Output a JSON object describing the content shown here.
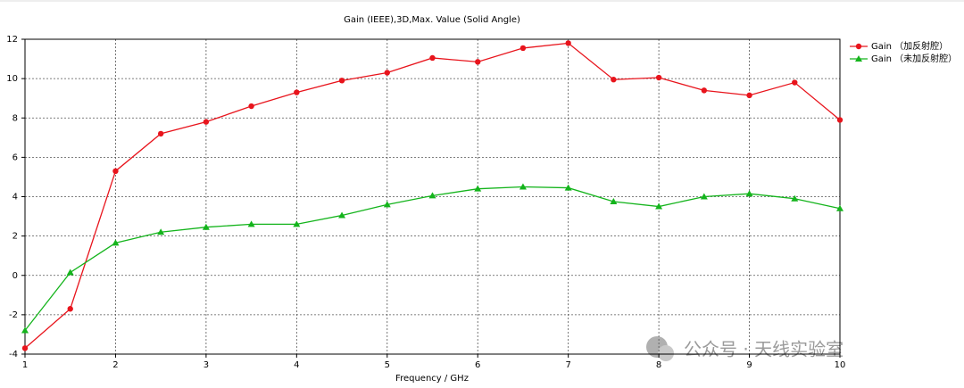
{
  "chart_data": {
    "type": "line",
    "title": "Gain (IEEE),3D,Max. Value (Solid Angle)",
    "x_label": "Frequency / GHz",
    "x": [
      1,
      1.5,
      2,
      2.5,
      3,
      3.5,
      4,
      4.5,
      5,
      5.5,
      6,
      6.5,
      7,
      7.5,
      8,
      8.5,
      9,
      9.5,
      10
    ],
    "series": [
      {
        "name": "Gain （加反射腔）",
        "color": "#e8141c",
        "marker": "circle",
        "values": [
          -3.7,
          -1.7,
          5.3,
          7.2,
          7.8,
          8.6,
          9.3,
          9.9,
          10.3,
          11.05,
          10.85,
          11.55,
          11.8,
          9.95,
          10.05,
          9.4,
          9.15,
          9.8,
          7.9
        ]
      },
      {
        "name": "Gain （未加反射腔）",
        "color": "#14b41c",
        "marker": "triangle",
        "values": [
          -2.8,
          0.15,
          1.65,
          2.2,
          2.45,
          2.6,
          2.6,
          3.05,
          3.6,
          4.05,
          4.4,
          4.5,
          4.45,
          3.75,
          3.5,
          4.0,
          4.15,
          3.9,
          3.4
        ]
      }
    ],
    "xlim": [
      1,
      10
    ],
    "xticks": [
      1,
      2,
      3,
      4,
      5,
      6,
      7,
      8,
      9,
      10
    ],
    "ylim": [
      -4,
      12
    ],
    "yticks": [
      -4,
      -2,
      0,
      2,
      4,
      6,
      8,
      10,
      12
    ],
    "grid": true,
    "legend": "right",
    "watermark": "公众号 · 天线实验室"
  }
}
